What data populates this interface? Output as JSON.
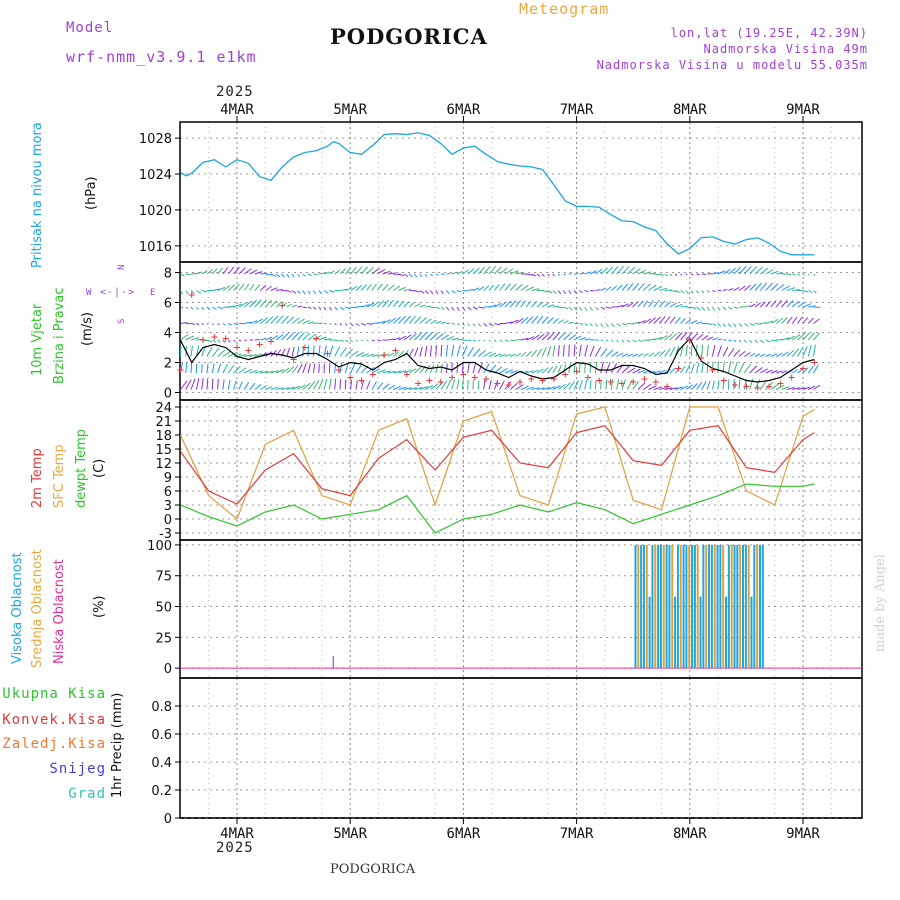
{
  "header": {
    "model_label": "Model",
    "model_name": "wrf-nmm_v3.9.1 e1km",
    "city": "PODGORICA",
    "meteogram": "Meteogram",
    "lonlat": "lon,lat (19.25E, 42.39N)",
    "elevation": "Nadmorska Visina 49m",
    "model_elevation": "Nadmorska Visina u modelu 55.035m",
    "footer_city": "PODGORICA",
    "watermark": "made by Angel"
  },
  "axis_labels": {
    "top_year": "2025",
    "bottom_year": "2025",
    "dates": [
      "4MAR",
      "5MAR",
      "6MAR",
      "7MAR",
      "8MAR",
      "9MAR"
    ],
    "pressure": [
      "Pritisak na nivou mora",
      "(hPa)"
    ],
    "wind": [
      "10m Vjetar",
      "Brzina i Pravac",
      "(m/s)"
    ],
    "wind_legend": {
      "w": "W",
      "e": "E",
      "s": "S",
      "n": "N"
    },
    "temp": [
      "2m Temp",
      "SFC Temp",
      "dewpt Temp",
      "(C)"
    ],
    "cloud": [
      "Visoka Oblacnost",
      "Srednja Oblacnost",
      "Niska Oblacnost",
      "(%)"
    ],
    "precip": [
      "Ukupna Kisa",
      "Konvek.Kisa",
      "Zaledj.Kisa",
      "Snijeg",
      "Grad",
      "1hr Precip (mm)"
    ]
  },
  "colors": {
    "pressure": "#1da6e0",
    "wind_speed": "#000000",
    "wind_gust": "#e03a3a",
    "temp2m": "#e03a3a",
    "sfc": "#e0a03a",
    "dewpt": "#2ec42e",
    "cloud_high": "#1da6e0",
    "cloud_mid": "#e0a03a",
    "cloud_low": "#e0309a",
    "label_purple": "#a040d0",
    "label_orange": "#e8a840"
  },
  "chart_data": [
    {
      "type": "line",
      "name": "pressure",
      "ylabel": "hPa",
      "ylim": [
        1014.2,
        1029.8
      ],
      "yticks": [
        1016,
        1020,
        1024,
        1028
      ],
      "x": [
        0,
        0.05,
        0.1,
        0.2,
        0.3,
        0.4,
        0.5,
        0.6,
        0.7,
        0.8,
        0.9,
        1.0,
        1.1,
        1.2,
        1.3,
        1.35,
        1.4,
        1.5,
        1.6,
        1.7,
        1.8,
        1.9,
        2.0,
        2.1,
        2.2,
        2.3,
        2.4,
        2.5,
        2.6,
        2.7,
        2.8,
        2.9,
        3.0,
        3.1,
        3.2,
        3.3,
        3.4,
        3.5,
        3.6,
        3.7,
        3.8,
        3.9,
        4.0,
        4.1,
        4.2,
        4.3,
        4.4,
        4.5,
        4.6,
        4.7,
        4.8,
        4.9,
        5.0,
        5.1,
        5.2,
        5.3,
        5.4,
        5.5,
        5.6
      ],
      "values": [
        1024.2,
        1023.8,
        1024.1,
        1025.3,
        1025.6,
        1024.8,
        1025.6,
        1025.2,
        1023.7,
        1023.3,
        1024.8,
        1025.9,
        1026.4,
        1026.6,
        1027.1,
        1027.6,
        1027.4,
        1026.4,
        1026.2,
        1027.2,
        1028.4,
        1028.5,
        1028.4,
        1028.6,
        1028.3,
        1027.4,
        1026.2,
        1026.9,
        1027.1,
        1026.2,
        1025.4,
        1025.1,
        1024.9,
        1024.8,
        1024.5,
        1022.8,
        1021.0,
        1020.4,
        1020.4,
        1020.3,
        1019.5,
        1018.8,
        1018.7,
        1018.1,
        1017.7,
        1016.2,
        1015.1,
        1015.7,
        1016.9,
        1017.0,
        1016.5,
        1016.2,
        1016.7,
        1016.9,
        1016.3,
        1015.4,
        1015.0,
        1015.0,
        1015.0
      ]
    },
    {
      "type": "line",
      "name": "wind",
      "ylabel": "m/s",
      "ylim": [
        -0.5,
        8.7
      ],
      "yticks": [
        0,
        2,
        4,
        6,
        8
      ],
      "x": [
        0,
        0.1,
        0.2,
        0.3,
        0.4,
        0.5,
        0.6,
        0.7,
        0.8,
        0.9,
        1.0,
        1.1,
        1.2,
        1.3,
        1.4,
        1.5,
        1.6,
        1.7,
        1.8,
        1.9,
        2.0,
        2.1,
        2.2,
        2.3,
        2.4,
        2.5,
        2.6,
        2.7,
        2.8,
        2.9,
        3.0,
        3.1,
        3.2,
        3.3,
        3.4,
        3.5,
        3.6,
        3.7,
        3.8,
        3.9,
        4.0,
        4.1,
        4.2,
        4.3,
        4.4,
        4.5,
        4.6,
        4.7,
        4.8,
        4.9,
        5.0,
        5.1,
        5.2,
        5.3,
        5.4,
        5.5,
        5.6
      ],
      "series": [
        {
          "values": [
            3.5,
            2.0,
            3.0,
            3.2,
            3.0,
            2.4,
            2.2,
            2.4,
            2.6,
            2.5,
            2.3,
            2.6,
            2.6,
            2.2,
            1.7,
            2.0,
            1.9,
            1.5,
            2.0,
            2.2,
            2.6,
            1.8,
            1.6,
            1.7,
            1.5,
            2.0,
            2.0,
            1.5,
            1.3,
            1.0,
            1.4,
            1.1,
            0.9,
            1.0,
            1.5,
            2.0,
            1.9,
            1.5,
            1.5,
            1.8,
            1.8,
            1.6,
            1.2,
            1.3,
            2.8,
            3.6,
            2.1,
            1.6,
            1.4,
            1.1,
            0.8,
            0.7,
            0.8,
            1.0,
            1.5,
            2.0,
            2.2
          ]
        },
        {
          "values": [
            1.5,
            6.5,
            3.5,
            3.7,
            3.6,
            3.0,
            2.8,
            3.2,
            3.4,
            5.8,
            2.2,
            3.0,
            3.6,
            2.6,
            1.5,
            1.0,
            0.8,
            1.2,
            2.5,
            2.8,
            1.2,
            0.6,
            0.8,
            0.7,
            1.0,
            1.2,
            1.0,
            0.9,
            0.6,
            0.5,
            0.7,
            0.9,
            0.8,
            0.9,
            1.2,
            1.4,
            1.0,
            0.8,
            0.7,
            0.6,
            0.7,
            0.9,
            0.7,
            0.4,
            1.6,
            3.5,
            2.3,
            1.5,
            0.8,
            0.5,
            0.4,
            0.3,
            0.4,
            0.6,
            1.0,
            1.6,
            2.0
          ]
        }
      ]
    },
    {
      "type": "line",
      "name": "temperature",
      "ylabel": "C",
      "ylim": [
        -4.5,
        25.5
      ],
      "yticks": [
        -3,
        0,
        3,
        6,
        9,
        12,
        15,
        18,
        21,
        24
      ],
      "x": [
        0,
        0.25,
        0.5,
        0.75,
        1.0,
        1.25,
        1.5,
        1.75,
        2.0,
        2.25,
        2.5,
        2.75,
        3.0,
        3.25,
        3.5,
        3.75,
        4.0,
        4.25,
        4.5,
        4.75,
        5.0,
        5.25,
        5.5,
        5.6
      ],
      "series": [
        {
          "values": [
            14.5,
            6.0,
            3.2,
            10.5,
            14.0,
            6.5,
            5.0,
            13.0,
            17.0,
            10.5,
            17.5,
            19.0,
            12.0,
            11.0,
            18.5,
            20.0,
            12.5,
            11.5,
            19.0,
            20.0,
            11.0,
            10.0,
            17.0,
            18.5
          ]
        },
        {
          "values": [
            18.0,
            5.0,
            0.0,
            16.0,
            19.0,
            5.0,
            3.0,
            19.0,
            21.5,
            3.0,
            21.0,
            23.0,
            5.0,
            3.0,
            22.5,
            24.0,
            4.0,
            2.0,
            24.0,
            24.0,
            6.0,
            3.0,
            22.0,
            23.5
          ]
        },
        {
          "values": [
            3.0,
            0.5,
            -1.5,
            1.5,
            3.0,
            0.0,
            1.0,
            2.0,
            5.0,
            -3.0,
            0.0,
            1.0,
            3.0,
            1.5,
            3.5,
            2.0,
            -1.0,
            1.0,
            3.0,
            5.0,
            7.5,
            7.0,
            7.0,
            7.5
          ]
        }
      ]
    },
    {
      "type": "bar",
      "name": "cloud",
      "ylabel": "%",
      "ylim": [
        -8,
        104
      ],
      "yticks": [
        0,
        25,
        50,
        75,
        100
      ],
      "note": "high and mid cloud near 100% from 8MAR 00h to ~9MAR 03h; low cloud 0 except small spike ~5MAR 09h",
      "low_spike": {
        "x": 1.35,
        "value": 10
      }
    },
    {
      "type": "bar",
      "name": "precip",
      "ylabel": "1hr Precip (mm)",
      "ylim": [
        0,
        1.0
      ],
      "yticks": [
        0,
        0.2,
        0.4,
        0.6,
        0.8
      ],
      "values": []
    }
  ]
}
